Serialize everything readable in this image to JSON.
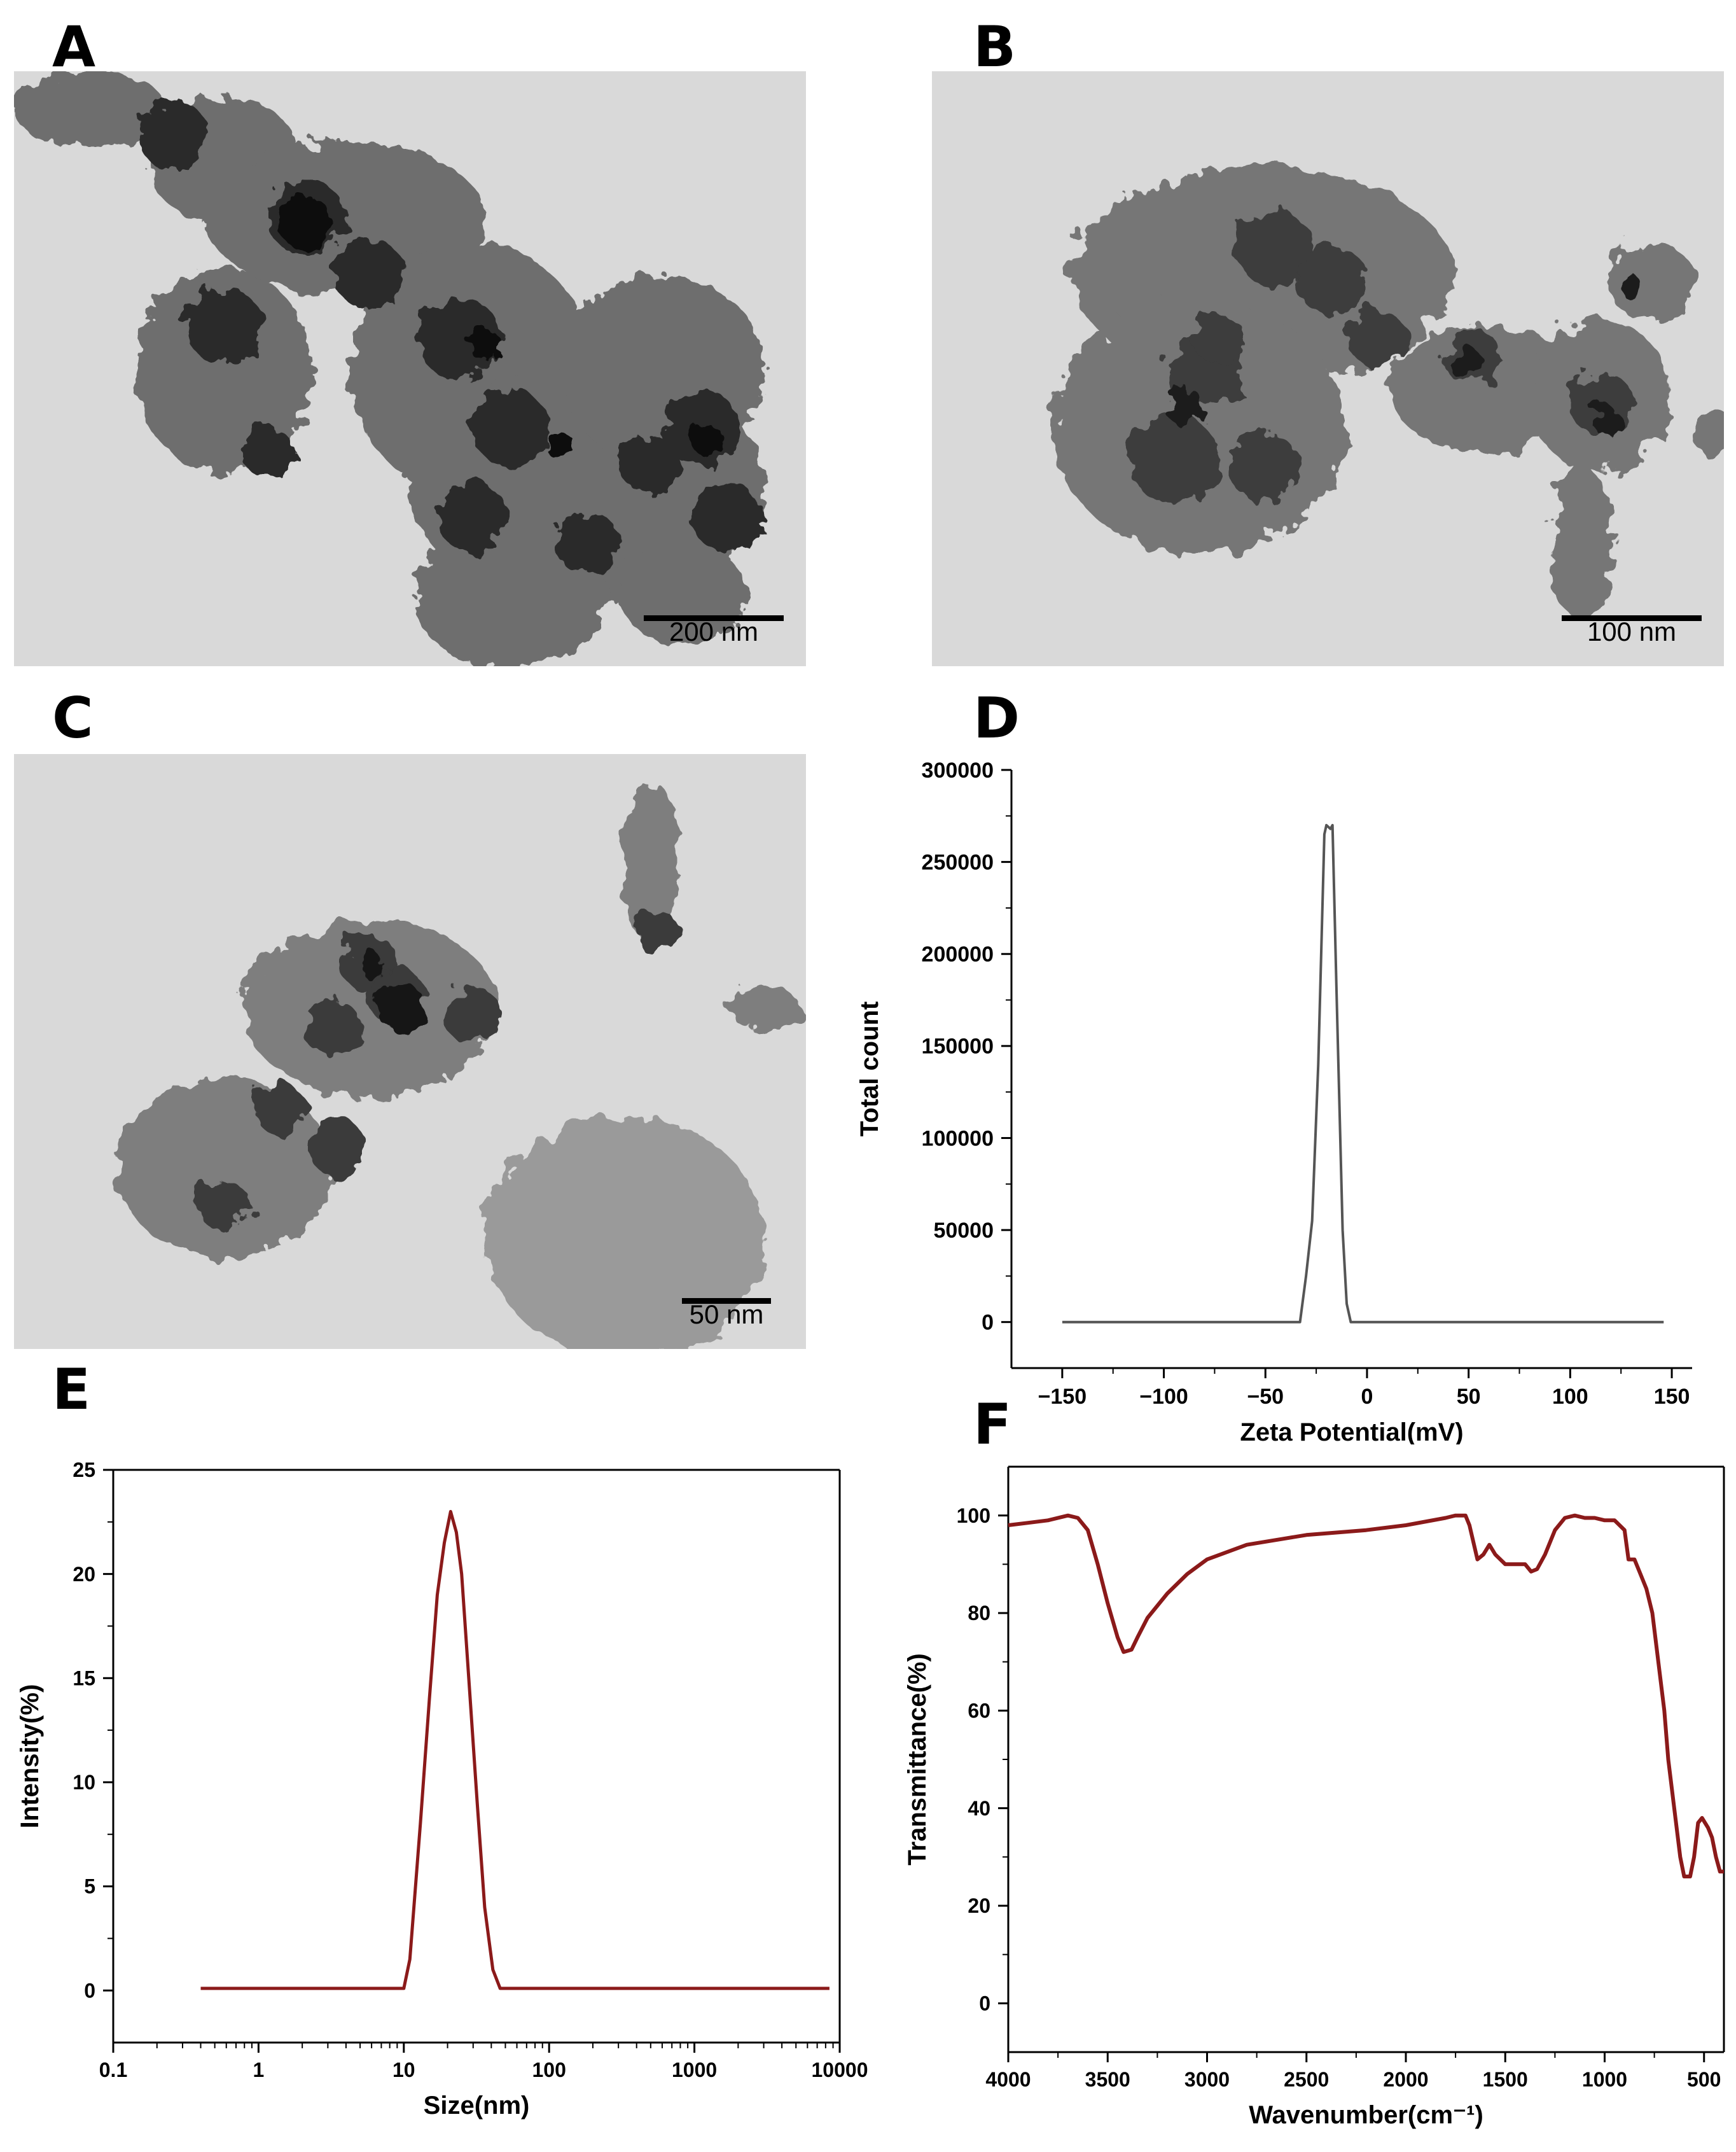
{
  "panels": {
    "A": {
      "letter": "A",
      "scale_label": "200 nm"
    },
    "B": {
      "letter": "B",
      "scale_label": "100 nm"
    },
    "C": {
      "letter": "C",
      "scale_label": "50 nm"
    },
    "D": {
      "letter": "D"
    },
    "E": {
      "letter": "E"
    },
    "F": {
      "letter": "F"
    }
  },
  "chart_data": [
    {
      "panel": "D",
      "type": "line",
      "xlabel": "Zeta Potential(mV)",
      "ylabel": "Total count",
      "xlim": [
        -175,
        160
      ],
      "ylim": [
        -25000,
        300000
      ],
      "xticks": [
        -150,
        -100,
        -50,
        0,
        50,
        100,
        150
      ],
      "xtick_labels": [
        "−150",
        "−100",
        "−50",
        "0",
        "50",
        "100",
        "150"
      ],
      "yticks": [
        0,
        50000,
        100000,
        150000,
        200000,
        250000,
        300000
      ],
      "ytick_labels": [
        "0",
        "50000",
        "100000",
        "150000",
        "200000",
        "250000",
        "300000"
      ],
      "color": "#555555",
      "grid": false,
      "series": [
        {
          "x": [
            -150,
            -33,
            -30,
            -27,
            -24,
            -21,
            -20,
            -18,
            -17,
            -15,
            -12,
            -10,
            -8,
            -5,
            146
          ],
          "y": [
            0,
            0,
            25000,
            55000,
            140000,
            265000,
            270000,
            268000,
            270000,
            180000,
            50000,
            10000,
            0,
            0,
            0
          ]
        }
      ]
    },
    {
      "panel": "E",
      "type": "line",
      "xscale": "log",
      "xlabel": "Size(nm)",
      "ylabel": "Intensity(%)",
      "xlim": [
        0.1,
        10000
      ],
      "ylim": [
        -2.5,
        25
      ],
      "xticks": [
        0.1,
        1,
        10,
        100,
        1000,
        10000
      ],
      "xtick_labels": [
        "0.1",
        "1",
        "10",
        "100",
        "1000",
        "10000"
      ],
      "yticks": [
        0,
        5,
        10,
        15,
        20,
        25
      ],
      "ytick_labels": [
        "0",
        "5",
        "10",
        "15",
        "20",
        "25"
      ],
      "color": "#8b1a1a",
      "grid": false,
      "series": [
        {
          "x": [
            0.4,
            10,
            11,
            13,
            15,
            17,
            19,
            21,
            23,
            25,
            28,
            32,
            36,
            41,
            46,
            50,
            8500
          ],
          "y": [
            0.1,
            0.1,
            1.5,
            8,
            14,
            19,
            21.5,
            23,
            22,
            20,
            15,
            9,
            4,
            1,
            0.1,
            0.1,
            0.1
          ]
        }
      ]
    },
    {
      "panel": "F",
      "type": "line",
      "xlabel": "Wavenumber(cm⁻¹)",
      "ylabel": "Transmittance(%)",
      "xlim": [
        4000,
        400
      ],
      "ylim": [
        -10,
        110
      ],
      "xticks": [
        4000,
        3500,
        3000,
        2500,
        2000,
        1500,
        1000,
        500
      ],
      "xtick_labels": [
        "4000",
        "3500",
        "3000",
        "2500",
        "2000",
        "1500",
        "1000",
        "500"
      ],
      "yticks": [
        0,
        20,
        40,
        60,
        80,
        100
      ],
      "ytick_labels": [
        "0",
        "20",
        "40",
        "60",
        "80",
        "100"
      ],
      "color": "#8b1a1a",
      "grid": false,
      "series": [
        {
          "x": [
            4000,
            3900,
            3800,
            3700,
            3650,
            3600,
            3550,
            3500,
            3450,
            3420,
            3380,
            3350,
            3300,
            3200,
            3100,
            3000,
            2800,
            2500,
            2200,
            2000,
            1800,
            1750,
            1700,
            1680,
            1640,
            1610,
            1580,
            1550,
            1500,
            1450,
            1400,
            1370,
            1340,
            1300,
            1250,
            1200,
            1150,
            1100,
            1050,
            1000,
            950,
            900,
            880,
            850,
            820,
            790,
            760,
            730,
            700,
            680,
            650,
            620,
            600,
            570,
            550,
            530,
            510,
            480,
            460,
            440,
            420,
            400
          ],
          "y": [
            98,
            98.5,
            99,
            100,
            99.5,
            97,
            90,
            82,
            75,
            72,
            72.5,
            75,
            79,
            84,
            88,
            91,
            94,
            96,
            97,
            98,
            99.5,
            100,
            100,
            98,
            91,
            92,
            94,
            92,
            90,
            90,
            90,
            88.5,
            89,
            92,
            97,
            99.5,
            100,
            99.5,
            99.5,
            99,
            99,
            97,
            91,
            91,
            88,
            85,
            80,
            70,
            60,
            50,
            40,
            30,
            26,
            26,
            30,
            37,
            38,
            36,
            34,
            30,
            27,
            27
          ]
        }
      ]
    }
  ]
}
